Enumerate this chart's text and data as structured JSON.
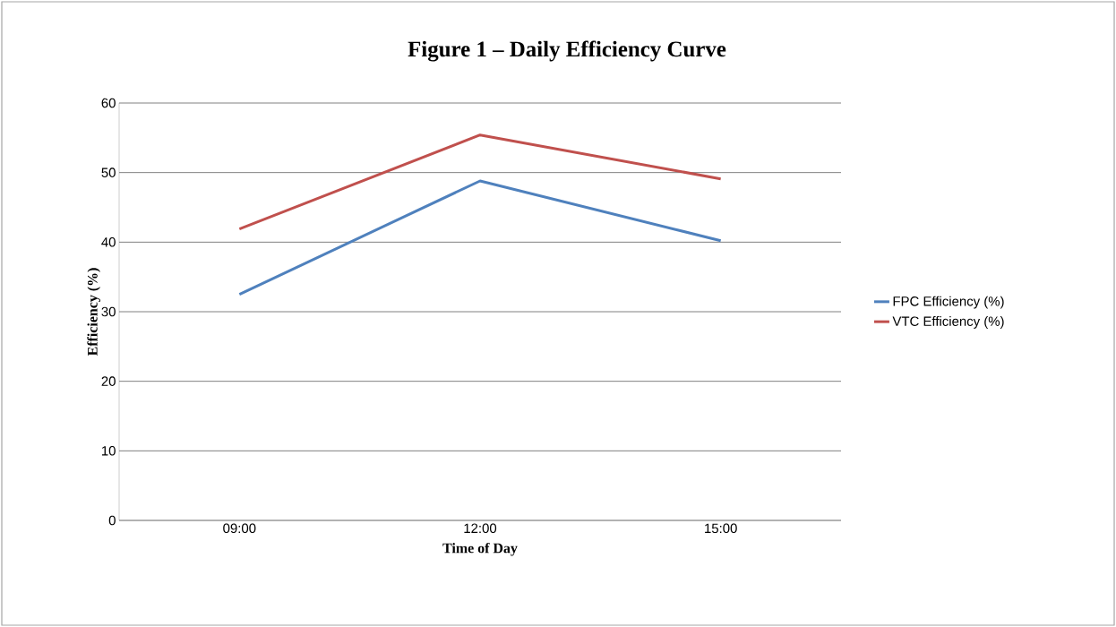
{
  "chart_data": {
    "type": "line",
    "title": "Figure 1 – Daily Efficiency Curve",
    "xlabel": "Time of Day",
    "ylabel": "Efficiency (%)",
    "categories": [
      "09:00",
      "12:00",
      "15:00"
    ],
    "series": [
      {
        "name": "FPC Efficiency (%)",
        "color": "#4f81bd",
        "values": [
          32.5,
          48.8,
          40.2
        ]
      },
      {
        "name": "VTC Efficiency (%)",
        "color": "#c0504d",
        "values": [
          41.9,
          55.4,
          49.1
        ]
      }
    ],
    "ylim": [
      0,
      60
    ],
    "yticks": [
      0,
      10,
      20,
      30,
      40,
      50,
      60
    ],
    "grid": "y",
    "legend": "right"
  }
}
